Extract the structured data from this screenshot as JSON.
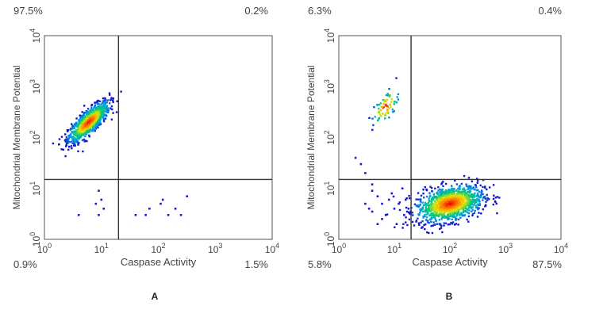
{
  "chart_data": [
    {
      "type": "scatter",
      "panel_label": "A",
      "xlabel": "Caspase Activity",
      "ylabel": "Mitochondrial Membrane Potential",
      "x_scale": "log",
      "y_scale": "log",
      "xlim": [
        1,
        10000
      ],
      "ylim": [
        1,
        10000
      ],
      "x_ticks": [
        "10",
        "10",
        "10",
        "10",
        "10"
      ],
      "x_tick_exponents": [
        "0",
        "1",
        "2",
        "3",
        "4"
      ],
      "y_ticks": [
        "10",
        "10",
        "10",
        "10",
        "10"
      ],
      "y_tick_exponents": [
        "0",
        "1",
        "2",
        "3",
        "4"
      ],
      "quadrant_gate": {
        "x": 20,
        "y": 15
      },
      "quadrants": {
        "upper_left": "97.5%",
        "upper_right": "0.2%",
        "lower_left": "0.9%",
        "lower_right": "1.5%"
      },
      "density_clusters": [
        {
          "center_x": 6,
          "center_y": 200,
          "spread_log_x": 0.18,
          "spread_log_y": 0.2,
          "tilt": 0.8,
          "count": 900
        }
      ],
      "sparse_points": [
        [
          9,
          9
        ],
        [
          10,
          6
        ],
        [
          8,
          5
        ],
        [
          9,
          3
        ],
        [
          11,
          4
        ],
        [
          4,
          3
        ],
        [
          40,
          3
        ],
        [
          70,
          4
        ],
        [
          110,
          5
        ],
        [
          120,
          6
        ],
        [
          150,
          3
        ],
        [
          200,
          4
        ],
        [
          250,
          3
        ],
        [
          320,
          7
        ],
        [
          60,
          3
        ]
      ]
    },
    {
      "type": "scatter",
      "panel_label": "B",
      "xlabel": "Caspase Activity",
      "ylabel": "Mitochondrial Membrane Potential",
      "x_scale": "log",
      "y_scale": "log",
      "xlim": [
        1,
        10000
      ],
      "ylim": [
        1,
        10000
      ],
      "x_ticks": [
        "10",
        "10",
        "10",
        "10",
        "10"
      ],
      "x_tick_exponents": [
        "0",
        "1",
        "2",
        "3",
        "4"
      ],
      "y_ticks": [
        "10",
        "10",
        "10",
        "10",
        "10"
      ],
      "y_tick_exponents": [
        "0",
        "1",
        "2",
        "3",
        "4"
      ],
      "quadrant_gate": {
        "x": 20,
        "y": 15
      },
      "quadrants": {
        "upper_left": "6.3%",
        "upper_right": "0.4%",
        "lower_left": "5.8%",
        "lower_right": "87.5%"
      },
      "density_clusters": [
        {
          "center_x": 100,
          "center_y": 5,
          "spread_log_x": 0.3,
          "spread_log_y": 0.18,
          "tilt": 0.35,
          "count": 1100
        },
        {
          "center_x": 7,
          "center_y": 400,
          "spread_log_x": 0.12,
          "spread_log_y": 0.18,
          "tilt": 0.6,
          "count": 70
        }
      ],
      "sparse_points": [
        [
          2,
          40
        ],
        [
          2.5,
          30
        ],
        [
          3,
          20
        ],
        [
          4,
          12
        ],
        [
          4,
          9
        ],
        [
          5,
          7
        ],
        [
          6,
          5
        ],
        [
          3,
          5
        ],
        [
          3.5,
          4
        ],
        [
          8,
          6
        ],
        [
          10,
          4
        ],
        [
          12,
          5
        ],
        [
          15,
          3
        ],
        [
          7,
          3
        ],
        [
          9,
          8
        ],
        [
          14,
          10
        ],
        [
          4,
          3.5
        ],
        [
          5,
          2
        ],
        [
          6,
          2.5
        ],
        [
          11,
          2
        ],
        [
          16,
          6
        ],
        [
          18,
          4
        ]
      ]
    }
  ]
}
